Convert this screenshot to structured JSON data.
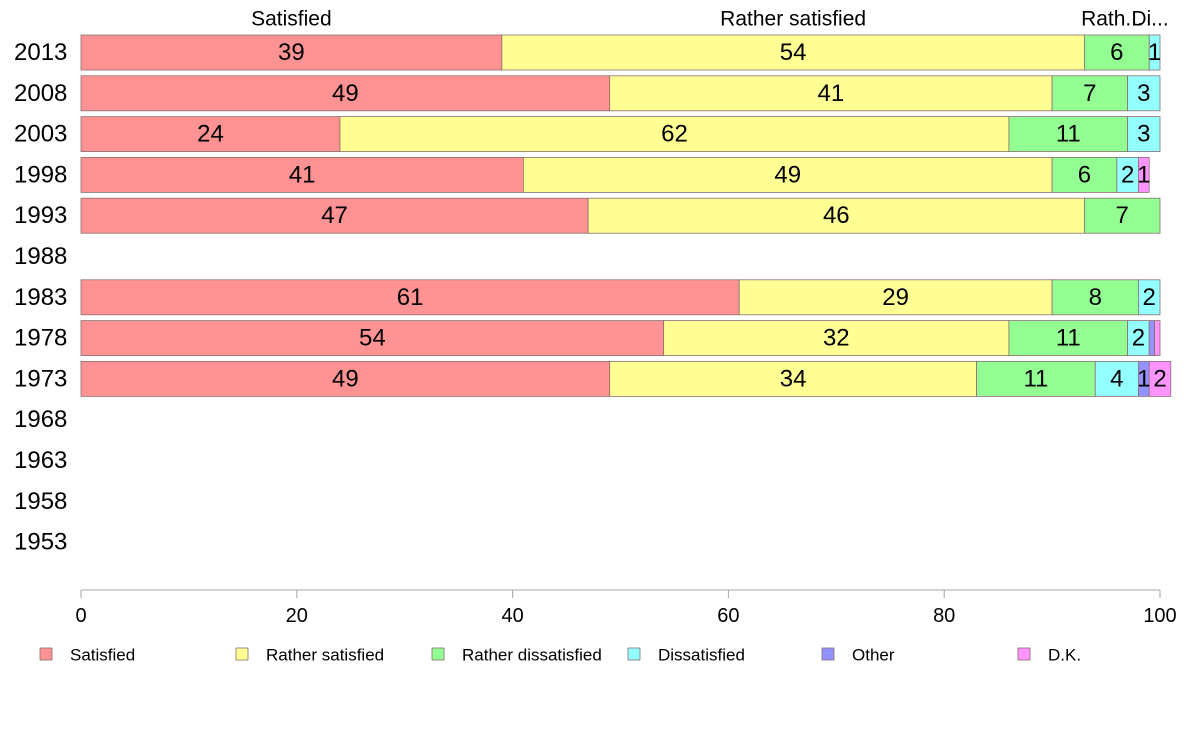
{
  "chart_data": {
    "type": "bar",
    "orientation": "horizontal",
    "stacked": true,
    "title": "",
    "xlabel": "",
    "ylabel": "",
    "xlim": [
      0,
      100
    ],
    "xticks": [
      0,
      20,
      40,
      60,
      80,
      100
    ],
    "grid": false,
    "legend": "bottom",
    "categories": [
      "2013",
      "2008",
      "2003",
      "1998",
      "1993",
      "1988",
      "1983",
      "1978",
      "1973",
      "1968",
      "1963",
      "1958",
      "1953"
    ],
    "series": [
      {
        "name": "Satisfied",
        "color": "#ff9393",
        "values": [
          39,
          49,
          24,
          41,
          47,
          null,
          61,
          54,
          49,
          null,
          null,
          null,
          null
        ]
      },
      {
        "name": "Rather satisfied",
        "color": "#ffff93",
        "values": [
          54,
          41,
          62,
          49,
          46,
          null,
          29,
          32,
          34,
          null,
          null,
          null,
          null
        ]
      },
      {
        "name": "Rather dissatisfied",
        "color": "#93ff93",
        "values": [
          6,
          7,
          11,
          6,
          7,
          null,
          8,
          11,
          11,
          null,
          null,
          null,
          null
        ]
      },
      {
        "name": "Dissatisfied",
        "color": "#93ffff",
        "values": [
          1,
          3,
          3,
          2,
          0,
          null,
          2,
          2,
          4,
          null,
          null,
          null,
          null
        ]
      },
      {
        "name": "Other",
        "color": "#9393ff",
        "values": [
          0,
          0,
          0,
          0,
          0,
          null,
          0,
          0.5,
          1,
          null,
          null,
          null,
          null
        ]
      },
      {
        "name": "D.K.",
        "color": "#ff93ff",
        "values": [
          0,
          0,
          0,
          1,
          0,
          null,
          0,
          0.5,
          2,
          null,
          null,
          null,
          null
        ]
      }
    ],
    "segment_labels": [
      [
        "39",
        "54",
        "6",
        "1",
        "",
        ""
      ],
      [
        "49",
        "41",
        "7",
        "3",
        "",
        ""
      ],
      [
        "24",
        "62",
        "11",
        "3",
        "",
        ""
      ],
      [
        "41",
        "49",
        "6",
        "2",
        "",
        "1"
      ],
      [
        "47",
        "46",
        "7",
        "",
        "",
        ""
      ],
      [
        "",
        "",
        "",
        "",
        "",
        ""
      ],
      [
        "61",
        "29",
        "8",
        "2",
        "",
        ""
      ],
      [
        "54",
        "32",
        "11",
        "2",
        "",
        ""
      ],
      [
        "49",
        "34",
        "11",
        "4",
        "1",
        "2"
      ],
      [
        "",
        "",
        "",
        "",
        "",
        ""
      ],
      [
        "",
        "",
        "",
        "",
        "",
        ""
      ],
      [
        "",
        "",
        "",
        "",
        "",
        ""
      ],
      [
        "",
        "",
        "",
        "",
        "",
        ""
      ]
    ],
    "top_labels": [
      "Satisfied",
      "Rather satisfied",
      "Rath...",
      "Di..."
    ]
  }
}
